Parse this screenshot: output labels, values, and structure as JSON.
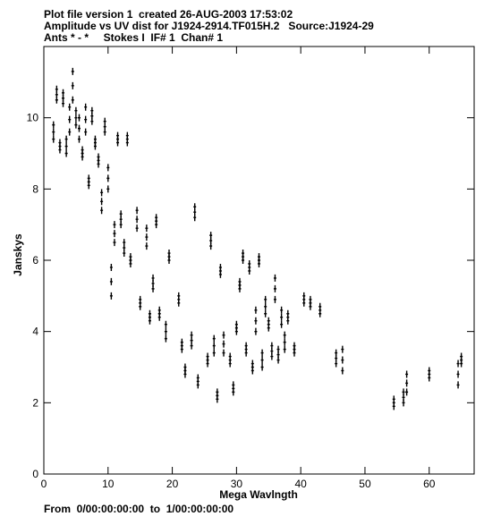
{
  "chart_data": {
    "type": "scatter",
    "title": "Plot file version 1  created 26-AUG-2003 17:53:02",
    "subtitle": "Amplitude vs UV dist for J1924-2914.TF015H.2   Source:J1924-29",
    "annotation": "Ants * - *     Stokes I  IF# 1  Chan# 1",
    "footer": "From  0/00:00:00:00  to  1/00:00:00:00",
    "x_label": "Mega Wavlngth",
    "y_label": "Janskys",
    "color": "#000000",
    "xlim": [
      0,
      67
    ],
    "ylim": [
      0,
      12
    ],
    "xticks": [
      0,
      10,
      20,
      30,
      40,
      50,
      60
    ],
    "yticks": [
      0,
      2,
      4,
      6,
      8,
      10
    ],
    "x": [
      1.5,
      1.5,
      1.5,
      2,
      2,
      2,
      2.5,
      2.5,
      2.5,
      3,
      3,
      3,
      3.5,
      3.5,
      3.5,
      4,
      4,
      4,
      4.5,
      4.5,
      4.5,
      5,
      5,
      5,
      5.5,
      5.5,
      5.5,
      6,
      6,
      6,
      6.5,
      6.5,
      6.5,
      7,
      7,
      7,
      7.5,
      7.5,
      7.5,
      8,
      8,
      8,
      8.5,
      8.5,
      8.5,
      9,
      9,
      9,
      9.5,
      9.5,
      9.5,
      10,
      10,
      10,
      10.5,
      10.5,
      10.5,
      11,
      11,
      11,
      11.5,
      11.5,
      11.5,
      12,
      12,
      12,
      12.5,
      12.5,
      12.5,
      13,
      13,
      13,
      13.5,
      13.5,
      13.5,
      14.5,
      14.5,
      14.5,
      15,
      15,
      15,
      16,
      16,
      16,
      16.5,
      16.5,
      16.5,
      17.5,
      17.5,
      17.5,
      17,
      17,
      17,
      18,
      18,
      18,
      19,
      19,
      19,
      19.5,
      19.5,
      19.5,
      21,
      21,
      21,
      21.5,
      21.5,
      21.5,
      22,
      22,
      22,
      23.5,
      23.5,
      23.5,
      23,
      23,
      23,
      24,
      24,
      24,
      25.5,
      25.5,
      25.5,
      26,
      26,
      26,
      26.5,
      26.5,
      26.5,
      27,
      27,
      27,
      27.5,
      27.5,
      27.5,
      28,
      28,
      28,
      29,
      29,
      29,
      29.5,
      29.5,
      29.5,
      30,
      30,
      30,
      30.5,
      30.5,
      30.5,
      31,
      31,
      31,
      31.5,
      31.5,
      31.5,
      32,
      32,
      32,
      32.5,
      32.5,
      32.5,
      33,
      33,
      33,
      33.5,
      33.5,
      33.5,
      34,
      34,
      34,
      34.5,
      34.5,
      34.5,
      35,
      35,
      35,
      35.5,
      35.5,
      35.5,
      36,
      36,
      36,
      36.5,
      36.5,
      36.5,
      37,
      37,
      37,
      37.5,
      37.5,
      37.5,
      38,
      38,
      38,
      39,
      39,
      39,
      40.5,
      40.5,
      40.5,
      41.5,
      41.5,
      41.5,
      43,
      43,
      43,
      45.5,
      45.5,
      45.5,
      46.5,
      46.5,
      46.5,
      54.5,
      54.5,
      54.5,
      56,
      56,
      56,
      56.5,
      56.5,
      56.5,
      60,
      60,
      60,
      64.5,
      64.5,
      64.5,
      65,
      65,
      65
    ],
    "values": [
      9.4,
      9.6,
      9.8,
      10.5,
      10.65,
      10.8,
      9.1,
      9.2,
      9.3,
      10.4,
      10.55,
      10.7,
      9.0,
      9.2,
      9.4,
      9.6,
      9.95,
      10.3,
      10.5,
      10.9,
      11.3,
      9.8,
      10.0,
      10.2,
      9.4,
      9.7,
      10.0,
      8.9,
      9.0,
      9.1,
      9.6,
      9.95,
      10.3,
      8.1,
      8.2,
      8.3,
      9.9,
      10.05,
      10.2,
      9.2,
      9.3,
      9.4,
      8.7,
      8.8,
      8.9,
      7.4,
      7.65,
      7.9,
      9.6,
      9.75,
      9.9,
      8.0,
      8.3,
      8.6,
      5.0,
      5.4,
      5.8,
      6.5,
      6.75,
      7.0,
      9.3,
      9.4,
      9.5,
      7.0,
      7.15,
      7.3,
      6.2,
      6.35,
      6.5,
      9.3,
      9.4,
      9.5,
      5.9,
      6.0,
      6.1,
      6.9,
      7.15,
      7.4,
      4.7,
      4.8,
      4.9,
      6.4,
      6.65,
      6.9,
      4.3,
      4.4,
      4.5,
      7.0,
      7.1,
      7.2,
      5.2,
      5.35,
      5.5,
      4.4,
      4.5,
      4.6,
      3.8,
      4.0,
      4.2,
      6.0,
      6.1,
      6.2,
      4.8,
      4.9,
      5.0,
      3.5,
      3.6,
      3.7,
      2.8,
      2.9,
      3.0,
      7.2,
      7.35,
      7.5,
      3.6,
      3.75,
      3.9,
      2.5,
      2.6,
      2.7,
      3.1,
      3.2,
      3.3,
      6.4,
      6.55,
      6.7,
      3.4,
      3.6,
      3.8,
      2.1,
      2.2,
      2.3,
      5.6,
      5.7,
      5.8,
      3.4,
      3.65,
      3.9,
      3.1,
      3.2,
      3.3,
      2.3,
      2.4,
      2.5,
      4.0,
      4.1,
      4.2,
      5.2,
      5.3,
      5.4,
      6.0,
      6.1,
      6.2,
      3.4,
      3.5,
      3.6,
      5.7,
      5.8,
      5.9,
      2.9,
      3.0,
      3.1,
      4.0,
      4.3,
      4.6,
      5.9,
      6.0,
      6.1,
      3.0,
      3.2,
      3.4,
      4.5,
      4.7,
      4.9,
      4.1,
      4.2,
      4.3,
      3.3,
      3.45,
      3.6,
      4.9,
      5.2,
      5.5,
      3.2,
      3.35,
      3.5,
      4.2,
      4.4,
      4.6,
      3.5,
      3.7,
      3.9,
      4.3,
      4.4,
      4.5,
      3.4,
      3.5,
      3.6,
      4.8,
      4.9,
      5.0,
      4.7,
      4.8,
      4.9,
      4.5,
      4.6,
      4.7,
      3.1,
      3.25,
      3.4,
      2.9,
      3.2,
      3.5,
      1.9,
      2.0,
      2.1,
      2.0,
      2.15,
      2.3,
      2.3,
      2.55,
      2.8,
      2.7,
      2.8,
      2.9,
      2.5,
      2.8,
      3.1,
      3.1,
      3.2,
      3.3
    ]
  }
}
